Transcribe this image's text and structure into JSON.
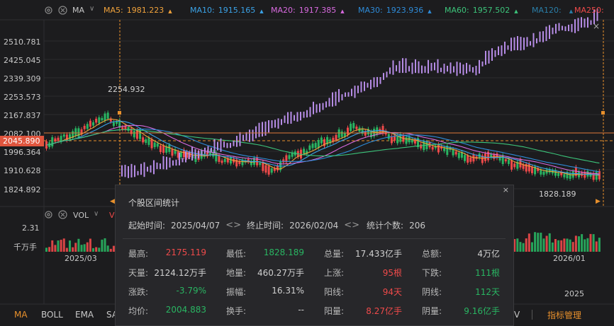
{
  "colors": {
    "bg": "#1c1c1e",
    "up": "#ef4a4a",
    "down": "#29b562",
    "ma5": "#f0a23b",
    "ma10": "#3ba3e8",
    "ma20": "#d86adf",
    "ma30": "#2e8bd8",
    "ma60": "#3cc47a",
    "ma120": "#2a7ea8",
    "ma250": "#ef4a4a",
    "overlay": "#b68ce6",
    "crosshair": "#e8902c"
  },
  "ma_bar": {
    "type_label": "MA",
    "items": [
      {
        "label": "MA5:",
        "value": "1981.223"
      },
      {
        "label": "MA10:",
        "value": "1915.165"
      },
      {
        "label": "MA20:",
        "value": "1917.385"
      },
      {
        "label": "MA30:",
        "value": "1923.936"
      },
      {
        "label": "MA60:",
        "value": "1957.502"
      },
      {
        "label": "MA120:",
        "value": ""
      },
      {
        "label": "MA250:",
        "value": ""
      }
    ]
  },
  "price_axis": [
    "2510.781",
    "2425.045",
    "2339.309",
    "2253.573",
    "2167.837",
    "2082.100",
    "1996.364",
    "1910.628",
    "1824.892"
  ],
  "current_price": "2045.890",
  "high_marker": "2254.932",
  "low_marker": "1828.189",
  "volume_panel": {
    "label": "VOL",
    "label_red": "V",
    "axis_value": "2.31",
    "axis_unit": "千万手",
    "date_left": "2025/03",
    "date_right": "2026/01",
    "date_right_lower": "2025"
  },
  "bottom_tabs": [
    "MA",
    "BOLL",
    "EMA",
    "SA"
  ],
  "bottom_right_tab": "V",
  "indicator_manage": "指标管理",
  "popup": {
    "title": "个股区间统计",
    "start_label": "起始时间:",
    "start_value": "2025/04/07",
    "end_label": "终止时间:",
    "end_value": "2026/02/04",
    "count_label": "统计个数:",
    "count_value": "206",
    "rows": [
      [
        {
          "label": "最高:",
          "value": "2175.119",
          "tone": "red"
        },
        {
          "label": "最低:",
          "value": "1828.189",
          "tone": "green"
        },
        {
          "label": "总量:",
          "value": "17.433亿手",
          "tone": "plain"
        },
        {
          "label": "总额:",
          "value": "4万亿",
          "tone": "plain"
        }
      ],
      [
        {
          "label": "天量:",
          "value": "2124.12万手",
          "tone": "plain"
        },
        {
          "label": "地量:",
          "value": "460.27万手",
          "tone": "plain"
        },
        {
          "label": "上涨:",
          "value": "95根",
          "tone": "red"
        },
        {
          "label": "下跌:",
          "value": "111根",
          "tone": "green"
        }
      ],
      [
        {
          "label": "涨跌:",
          "value": "-3.79%",
          "tone": "green"
        },
        {
          "label": "振幅:",
          "value": "16.31%",
          "tone": "plain"
        },
        {
          "label": "阳线:",
          "value": "94天",
          "tone": "red"
        },
        {
          "label": "阴线:",
          "value": "112天",
          "tone": "green"
        }
      ],
      [
        {
          "label": "均价:",
          "value": "2004.883",
          "tone": "green"
        },
        {
          "label": "换手:",
          "value": "--",
          "tone": "plain"
        },
        {
          "label": "阳量:",
          "value": "8.27亿手",
          "tone": "red"
        },
        {
          "label": "阴量:",
          "value": "9.16亿手",
          "tone": "green"
        }
      ]
    ]
  }
}
